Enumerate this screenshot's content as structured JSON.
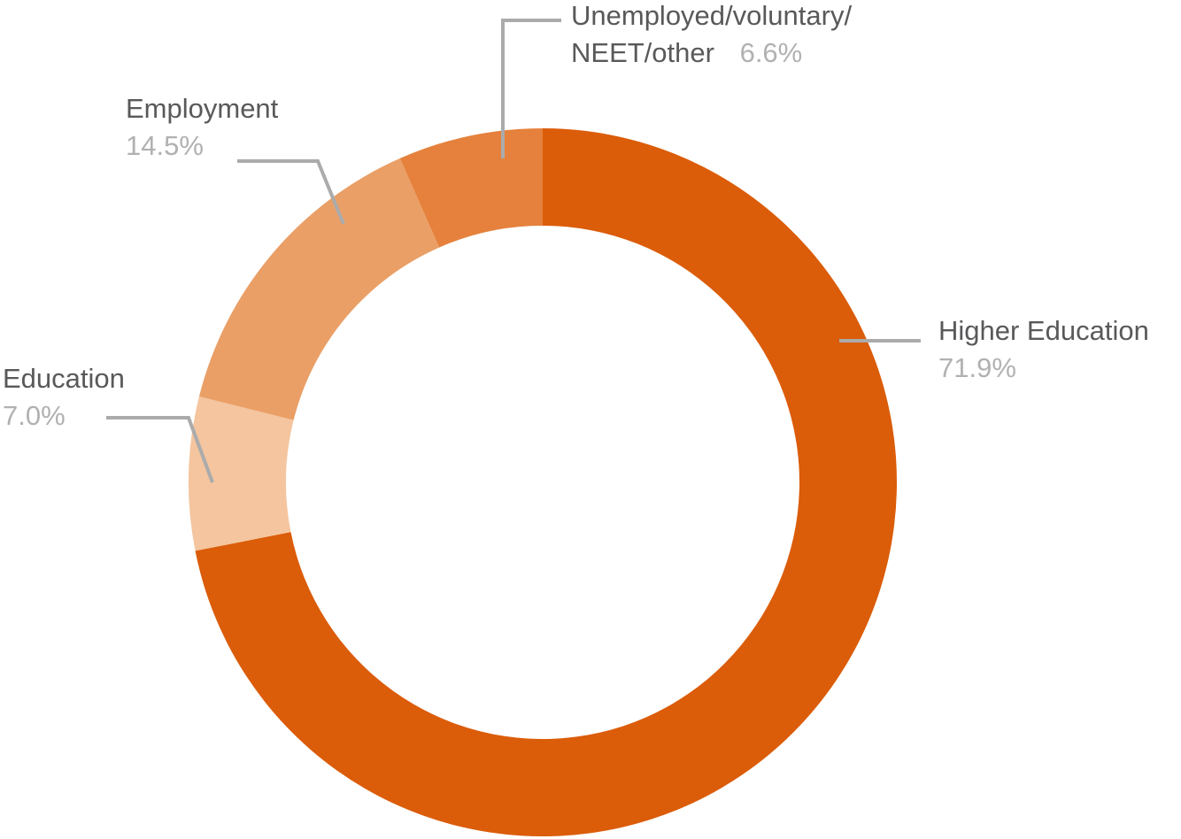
{
  "chart_data": {
    "type": "pie",
    "subtype": "donut",
    "title": "",
    "direction": "clockwise",
    "start_angle_deg": 0,
    "donut_hole_ratio": 0.725,
    "background_color": "#FFFFFF",
    "leader_line_color": "#ABABAB",
    "label_color": "#59595B",
    "pct_color": "#B1B1B3",
    "segments": [
      {
        "label": "Higher Education",
        "label_lines": [
          "Higher Education"
        ],
        "value": 71.9,
        "pct_label": "71.9%",
        "color": "#DB5C09"
      },
      {
        "label": "Education",
        "label_lines": [
          "Education"
        ],
        "value": 7.0,
        "pct_label": "7.0%",
        "color": "#F4C59E"
      },
      {
        "label": "Employment",
        "label_lines": [
          "Employment"
        ],
        "value": 14.5,
        "pct_label": "14.5%",
        "color": "#EA9F66"
      },
      {
        "label": "Unemployed/voluntary/NEET/other",
        "label_lines": [
          "Unemployed/voluntary/",
          "NEET/other"
        ],
        "value": 6.6,
        "pct_label": "6.6%",
        "color": "#E5813C"
      }
    ]
  }
}
